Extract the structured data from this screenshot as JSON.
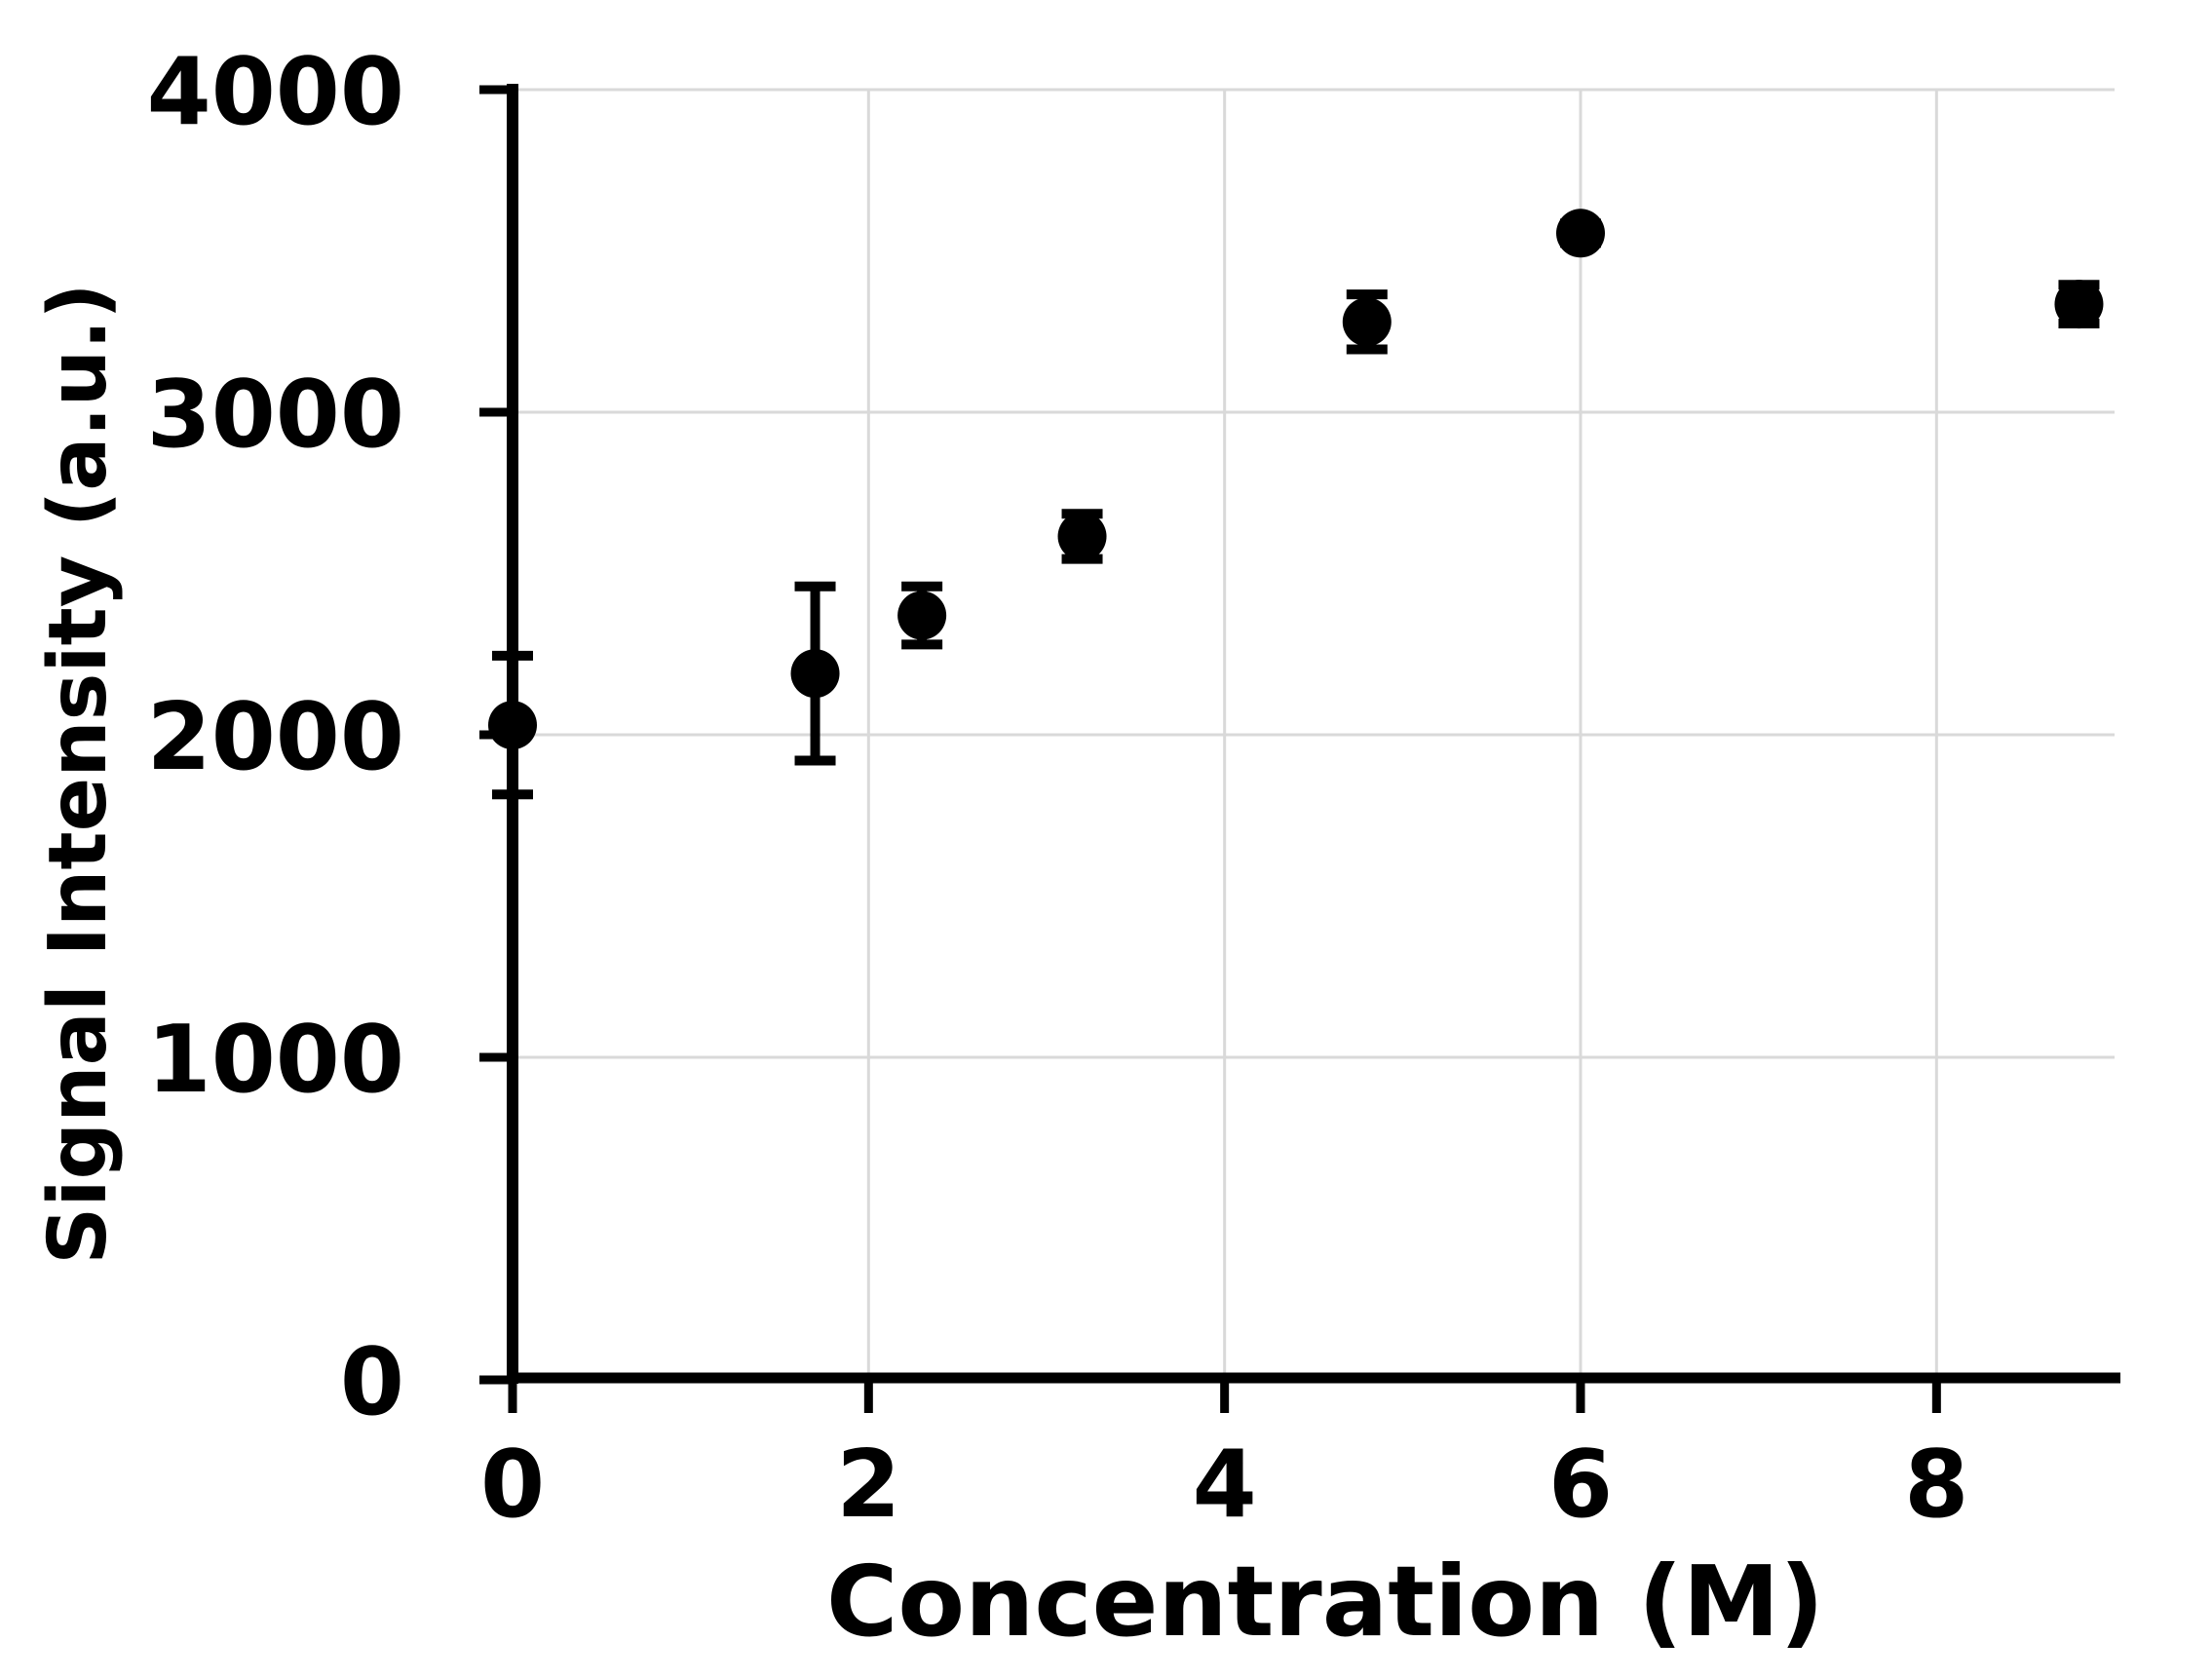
{
  "page": {
    "background_color": "#ffffff"
  },
  "chart_data": {
    "type": "scatter",
    "title": "",
    "xlabel": "Concentration (M)",
    "ylabel": "Signal Intensity (a.u.)",
    "xlim": [
      0,
      9
    ],
    "ylim": [
      0,
      4000
    ],
    "x_ticks": [
      0,
      2,
      4,
      6,
      8
    ],
    "y_ticks": [
      0,
      1000,
      2000,
      3000,
      4000
    ],
    "grid": true,
    "legend": false,
    "gridline_color": "#d9d9d9",
    "axis_color": "#000000",
    "marker_color": "#000000",
    "error_bar_color": "#000000",
    "series": [
      {
        "name": "Signal Intensity",
        "marker": "circle",
        "points": [
          {
            "x": 0.0,
            "y": 2030,
            "yerr": 215
          },
          {
            "x": 1.7,
            "y": 2190,
            "yerr": 270
          },
          {
            "x": 2.3,
            "y": 2370,
            "yerr": 90
          },
          {
            "x": 3.2,
            "y": 2615,
            "yerr": 70
          },
          {
            "x": 4.8,
            "y": 3280,
            "yerr": 85
          },
          {
            "x": 6.0,
            "y": 3555,
            "yerr": 30
          },
          {
            "x": 8.8,
            "y": 3335,
            "yerr": 60
          }
        ]
      }
    ]
  }
}
